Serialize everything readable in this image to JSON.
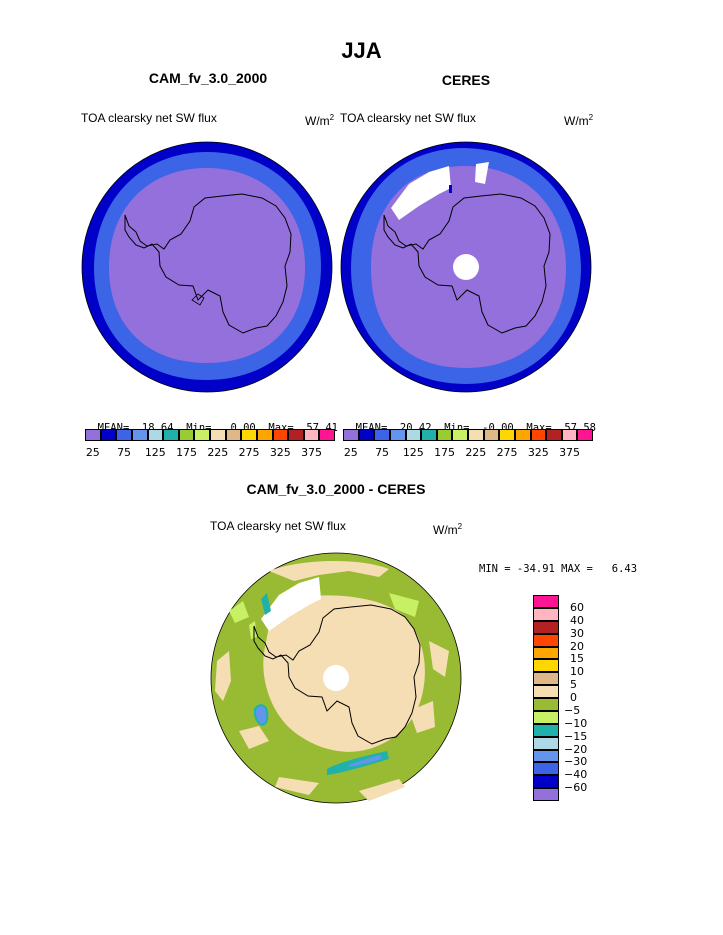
{
  "page": {
    "title": "JJA"
  },
  "colors": {
    "dark_blue": "#0000C8",
    "royal_blue": "#3C64E6",
    "purple": "#9370DB",
    "white": "#ffffff",
    "coast": "#000000",
    "diff_green": "#99BB33",
    "diff_light_green": "#C8F064",
    "diff_wheat": "#F5DEB3",
    "diff_teal": "#20B2AA",
    "diff_lightblue": "#ADD8E6",
    "diff_blue": "#6495ED"
  },
  "panels": [
    {
      "title": "CAM_fv_3.0_2000",
      "variable": "TOA clearsky net SW flux",
      "units_base": "W/m",
      "units_exp": "2",
      "mean_label": "MEAN=",
      "mean_value": "18.64",
      "min_label": "Min=",
      "min_value": "0.00",
      "max_label": "Max=",
      "max_value": "57.41"
    },
    {
      "title": "CERES",
      "variable": "TOA clearsky net SW flux",
      "units_base": "W/m",
      "units_exp": "2",
      "mean_label": "MEAN=",
      "mean_value": "20.42",
      "min_label": "Min=",
      "min_value": "-0.00",
      "max_label": "Max=",
      "max_value": "57.58"
    }
  ],
  "abs_colorbar": {
    "colors": [
      "#9370DB",
      "#0000C8",
      "#3C64E6",
      "#6495ED",
      "#ADD8E6",
      "#20B2AA",
      "#99CC33",
      "#C8F064",
      "#F5DEB3",
      "#DEB887",
      "#FFD700",
      "#FFA500",
      "#FF4500",
      "#B22222",
      "#FFB6C1",
      "#FF1493"
    ],
    "labels": [
      "25",
      "75",
      "125",
      "175",
      "225",
      "275",
      "325",
      "375"
    ]
  },
  "diff_panel": {
    "title": "CAM_fv_3.0_2000 - CERES",
    "variable": "TOA clearsky net SW flux",
    "units_base": "W/m",
    "units_exp": "2",
    "stats_text": "MIN = -34.91 MAX =   6.43"
  },
  "diff_colorbar": {
    "colors": [
      "#FF1493",
      "#FFB6C1",
      "#B22222",
      "#FF4500",
      "#FFA500",
      "#FFD700",
      "#DEB887",
      "#F5DEB3",
      "#99BB33",
      "#C8F064",
      "#20B2AA",
      "#ADD8E6",
      "#6495ED",
      "#3C64E6",
      "#0000C8",
      "#9370DB"
    ],
    "labels": [
      "60",
      "40",
      "30",
      "20",
      "15",
      "10",
      "5",
      "0",
      "-5",
      "-10",
      "-15",
      "-20",
      "-30",
      "-40",
      "-60"
    ]
  },
  "chart_data": [
    {
      "type": "heatmap",
      "title": "CAM_fv_3.0_2000",
      "projection": "south polar stereographic",
      "levels": [
        25,
        50,
        75,
        100,
        125,
        150,
        175,
        200,
        225,
        250,
        275,
        300,
        325,
        350,
        375
      ],
      "field_description": "interior 0-25 (purple), outer rings 25-75 (blue)"
    },
    {
      "type": "heatmap",
      "title": "CERES",
      "projection": "south polar stereographic",
      "levels": [
        25,
        50,
        75,
        100,
        125,
        150,
        175,
        200,
        225,
        250,
        275,
        300,
        325,
        350,
        375
      ]
    },
    {
      "type": "heatmap",
      "title": "CAM_fv_3.0_2000 - CERES",
      "projection": "south polar stereographic",
      "levels": [
        -60,
        -40,
        -30,
        -20,
        -15,
        -10,
        -5,
        0,
        5,
        10,
        15,
        20,
        30,
        40,
        60
      ]
    }
  ]
}
